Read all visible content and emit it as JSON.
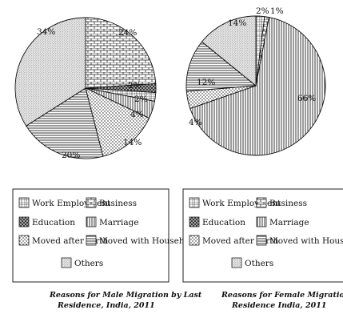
{
  "chart_data": [
    {
      "type": "pie",
      "caption_lines": [
        "Reasons for Male Migration by Last",
        "Residence, India, 2011"
      ],
      "slices": [
        {
          "label": "Business",
          "value": 24,
          "value_label": "24%",
          "color": "#ffffff",
          "pattern": "brick"
        },
        {
          "label": "Education",
          "value": 2,
          "value_label": "2%",
          "color": "#ffffff",
          "pattern": "hatch"
        },
        {
          "label": "Work Employment",
          "value": 2,
          "value_label": "2%",
          "color": "#ffffff",
          "pattern": "grid"
        },
        {
          "label": "Marriage",
          "value": 4,
          "value_label": "4%",
          "color": "#ffffff",
          "pattern": "vlines"
        },
        {
          "label": "Moved after Birth",
          "value": 14,
          "value_label": "14%",
          "color": "#ffffff",
          "pattern": "dots"
        },
        {
          "label": "Moved with Household",
          "value": 20,
          "value_label": "20%",
          "color": "#ffffff",
          "pattern": "hlines"
        },
        {
          "label": "Others",
          "value": 34,
          "value_label": "34%",
          "color": "#ffffff",
          "pattern": "stipple"
        }
      ]
    },
    {
      "type": "pie",
      "caption_lines": [
        "Reasons for Female Migration by last",
        "Residence India, 2011"
      ],
      "slices": [
        {
          "label": "Work Employment",
          "value": 2,
          "value_label": "2%",
          "color": "#ffffff",
          "pattern": "grid"
        },
        {
          "label": "Business",
          "value": 1,
          "value_label": "1%",
          "color": "#ffffff",
          "pattern": "brick"
        },
        {
          "label": "Marriage",
          "value": 66,
          "value_label": "66%",
          "color": "#ffffff",
          "pattern": "vlines"
        },
        {
          "label": "Moved after Birth",
          "value": 4,
          "value_label": "4%",
          "color": "#ffffff",
          "pattern": "dots"
        },
        {
          "label": "Moved with Household",
          "value": 12,
          "value_label": "12%",
          "color": "#ffffff",
          "pattern": "hlines"
        },
        {
          "label": "Others",
          "value": 14,
          "value_label": "14%",
          "color": "#ffffff",
          "pattern": "stipple"
        }
      ]
    }
  ],
  "legends": [
    {
      "entries": [
        {
          "label": "Work Employment",
          "pattern": "grid"
        },
        {
          "label": "Business",
          "pattern": "brick"
        },
        {
          "label": "Education",
          "pattern": "hatch"
        },
        {
          "label": "Marriage",
          "pattern": "vlines"
        },
        {
          "label": "Moved after Birth",
          "pattern": "dots"
        },
        {
          "label": "Moved with Household",
          "pattern": "hlines"
        },
        {
          "label": "Others",
          "pattern": "stipple"
        }
      ]
    },
    {
      "entries": [
        {
          "label": "Work Employment",
          "pattern": "grid"
        },
        {
          "label": "Business",
          "pattern": "brick"
        },
        {
          "label": "Education",
          "pattern": "hatch"
        },
        {
          "label": "Marriage",
          "pattern": "vlines"
        },
        {
          "label": "Moved after Birth",
          "pattern": "dots"
        },
        {
          "label": "Moved with Household",
          "pattern": "hlines"
        },
        {
          "label": "Others",
          "pattern": "stipple"
        }
      ]
    }
  ]
}
